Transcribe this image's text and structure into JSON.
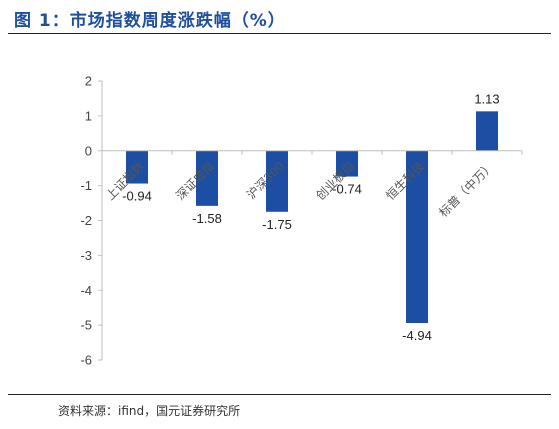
{
  "title": "图 1：市场指数周度涨跌幅（%）",
  "source": "资料来源：ifind，国元证券研究所",
  "colors": {
    "bar": "#1c4fa3",
    "title": "#1e4e9e",
    "axis": "#bfbfbf"
  },
  "chart_data": {
    "type": "bar",
    "categories": [
      "上证指数",
      "深证成指",
      "沪深300",
      "创业板指",
      "恒生科技",
      "标普（中万）"
    ],
    "values": [
      -0.94,
      -1.58,
      -1.75,
      -0.74,
      -4.94,
      1.13
    ],
    "value_labels": [
      "-0.94",
      "-1.58",
      "-1.75",
      "-0.74",
      "-4.94",
      "1.13"
    ],
    "y_ticks": [
      "2",
      "1",
      "0",
      "-1",
      "-2",
      "-3",
      "-4",
      "-5",
      "-6"
    ],
    "ylim": [
      -6,
      2
    ],
    "grid": false,
    "legend": "none"
  }
}
